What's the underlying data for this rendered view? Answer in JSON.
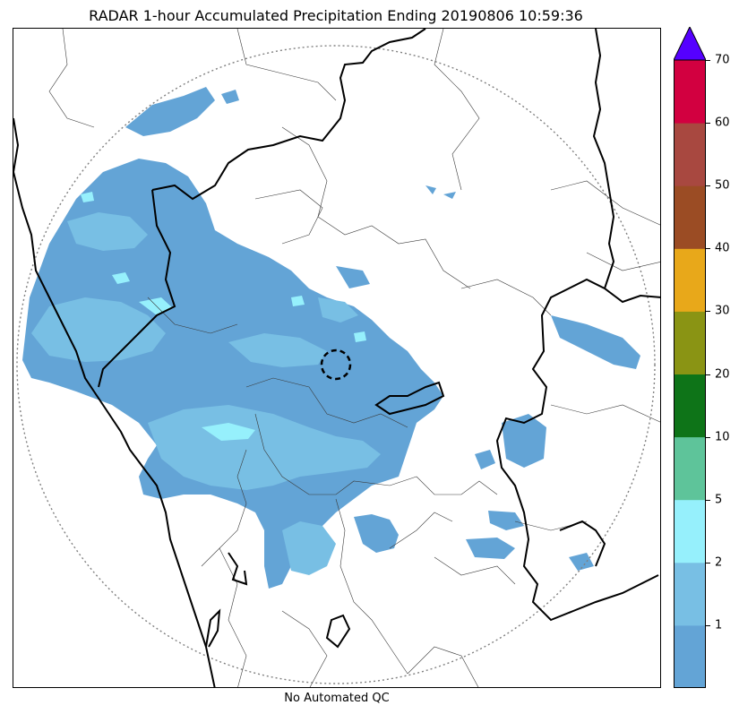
{
  "title": "RADAR 1-hour Accumulated Precipitation Ending 20190806 10:59:36",
  "footer_note": "No Automated QC",
  "colorbar": {
    "ticks": [
      "1",
      "2",
      "5",
      "10",
      "20",
      "30",
      "40",
      "50",
      "60",
      "70"
    ],
    "bins": [
      {
        "color": "#63a4d6"
      },
      {
        "color": "#78bfe4"
      },
      {
        "color": "#96f0fc"
      },
      {
        "color": "#5ec49a"
      },
      {
        "color": "#0e7418"
      },
      {
        "color": "#8a9414"
      },
      {
        "color": "#e8a81a"
      },
      {
        "color": "#9b4c24"
      },
      {
        "color": "#a84840"
      },
      {
        "color": "#d20040"
      }
    ],
    "extend_color": "#5500ff"
  },
  "colors": {
    "precip_1": "#63a4d6",
    "precip_2": "#78bfe4",
    "precip_5": "#96f0fc",
    "coast": "#000000",
    "boundary": "#3a3a3a",
    "range_ring": "#808080"
  }
}
